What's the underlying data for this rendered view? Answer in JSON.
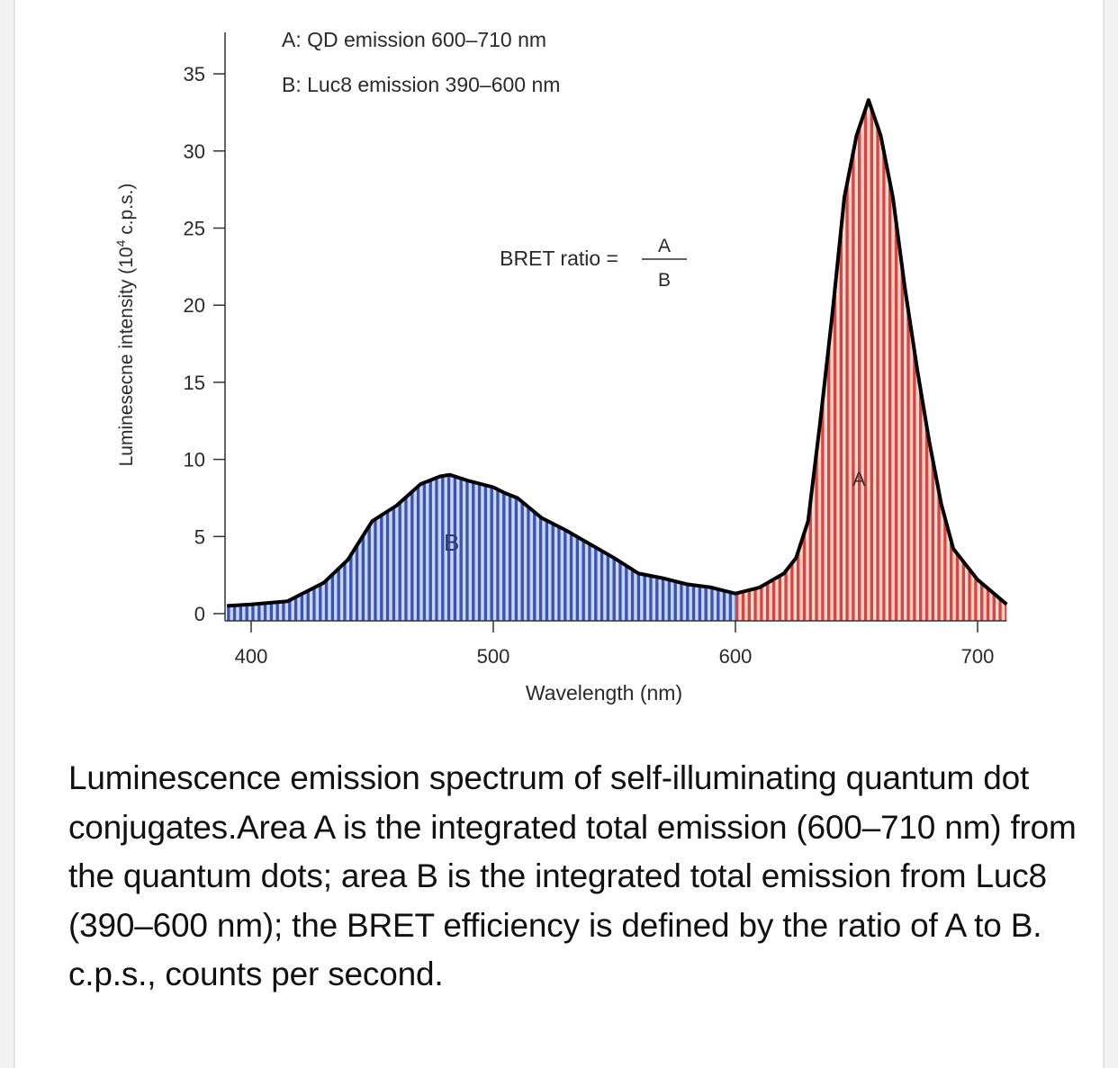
{
  "chart_data": {
    "type": "area",
    "title": "",
    "xlabel": "Wavelength (nm)",
    "ylabel": "Luminesecne intensity (10^4 c.p.s.)",
    "ylabel_parts": {
      "main": "Luminesecne intensity (10",
      "sup": "4",
      "tail": " c.p.s.)"
    },
    "xlim": [
      390,
      712
    ],
    "ylim": [
      0,
      37
    ],
    "xticks": [
      400,
      500,
      600,
      700
    ],
    "yticks": [
      0,
      5,
      10,
      15,
      20,
      25,
      30,
      35
    ],
    "grid": false,
    "annotations": {
      "legend_a": "A: QD emission 600–710 nm",
      "legend_b": "B: Luc8 emission 390–600 nm",
      "ratio_label": "BRET ratio =",
      "ratio_numerator": "A",
      "ratio_denominator": "B",
      "region_a_label": "A",
      "region_b_label": "B"
    },
    "regions": [
      {
        "name": "B",
        "range": [
          390,
          600
        ],
        "color": "#3a55b0",
        "stripe_color": "#c9d3f2"
      },
      {
        "name": "A",
        "range": [
          600,
          712
        ],
        "color": "#d9453b",
        "stripe_color": "#f6d4cf"
      }
    ],
    "series": [
      {
        "name": "Luminescence emission spectrum",
        "x": [
          390,
          400,
          415,
          420,
          430,
          440,
          450,
          460,
          470,
          478,
          482,
          490,
          500,
          505,
          510,
          520,
          530,
          540,
          550,
          560,
          570,
          580,
          590,
          600,
          610,
          620,
          625,
          630,
          635,
          640,
          645,
          650,
          655,
          660,
          665,
          670,
          675,
          680,
          685,
          690,
          700,
          712
        ],
        "y": [
          0.5,
          0.6,
          0.8,
          1.2,
          2.0,
          3.5,
          6.0,
          7.0,
          8.4,
          8.9,
          9.0,
          8.6,
          8.2,
          7.8,
          7.5,
          6.2,
          5.4,
          4.5,
          3.6,
          2.6,
          2.3,
          1.9,
          1.7,
          1.3,
          1.7,
          2.6,
          3.6,
          6.0,
          12.4,
          19.4,
          27.0,
          31.0,
          33.3,
          31.0,
          27.0,
          21.1,
          15.9,
          11.2,
          7.1,
          4.2,
          2.2,
          0.6
        ]
      }
    ]
  },
  "caption": "Luminescence emission spectrum of self-illuminating quantum dot conjugates.Area A is the integrated total emission (600–710 nm) from the quantum dots; area B is the integrated total emission from Luc8 (390–600 nm); the BRET efficiency is defined by the ratio of A to B. c.p.s., counts per second."
}
